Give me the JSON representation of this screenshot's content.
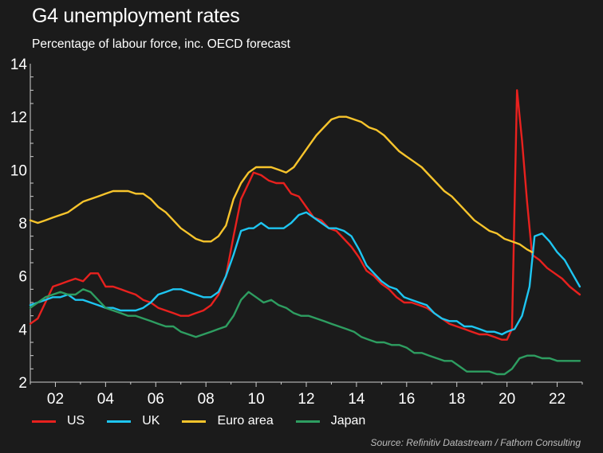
{
  "title": "G4 unemployment rates",
  "subtitle": "Percentage of labour force, inc. OECD forecast",
  "source": "Source: Refinitiv Datastream / Fathom Consulting",
  "chart_data": {
    "type": "line",
    "title": "G4 unemployment rates",
    "subtitle": "Percentage of labour force, inc. OECD forecast",
    "xlabel": "",
    "ylabel": "",
    "xlim": [
      2001,
      2023
    ],
    "ylim": [
      2,
      14
    ],
    "yticks": [
      2,
      4,
      6,
      8,
      10,
      12,
      14
    ],
    "xticks": [
      2002,
      2004,
      2006,
      2008,
      2010,
      2012,
      2014,
      2016,
      2018,
      2020,
      2022
    ],
    "xtick_labels": [
      "02",
      "04",
      "06",
      "08",
      "10",
      "12",
      "14",
      "16",
      "18",
      "20",
      "22"
    ],
    "grid": false,
    "legend_position": "bottom",
    "series": [
      {
        "name": "US",
        "color": "#e8211e",
        "points": [
          [
            2001.0,
            4.2
          ],
          [
            2001.3,
            4.4
          ],
          [
            2001.6,
            5.0
          ],
          [
            2001.9,
            5.6
          ],
          [
            2002.2,
            5.7
          ],
          [
            2002.5,
            5.8
          ],
          [
            2002.8,
            5.9
          ],
          [
            2003.1,
            5.8
          ],
          [
            2003.4,
            6.1
          ],
          [
            2003.7,
            6.1
          ],
          [
            2004.0,
            5.6
          ],
          [
            2004.3,
            5.6
          ],
          [
            2004.6,
            5.5
          ],
          [
            2004.9,
            5.4
          ],
          [
            2005.2,
            5.3
          ],
          [
            2005.5,
            5.1
          ],
          [
            2005.8,
            5.0
          ],
          [
            2006.1,
            4.8
          ],
          [
            2006.4,
            4.7
          ],
          [
            2006.7,
            4.6
          ],
          [
            2007.0,
            4.5
          ],
          [
            2007.3,
            4.5
          ],
          [
            2007.6,
            4.6
          ],
          [
            2007.9,
            4.7
          ],
          [
            2008.2,
            4.9
          ],
          [
            2008.5,
            5.3
          ],
          [
            2008.8,
            6.0
          ],
          [
            2009.1,
            7.5
          ],
          [
            2009.4,
            8.9
          ],
          [
            2009.7,
            9.5
          ],
          [
            2009.9,
            9.9
          ],
          [
            2010.2,
            9.8
          ],
          [
            2010.5,
            9.6
          ],
          [
            2010.8,
            9.5
          ],
          [
            2011.1,
            9.5
          ],
          [
            2011.4,
            9.1
          ],
          [
            2011.7,
            9.0
          ],
          [
            2012.0,
            8.6
          ],
          [
            2012.3,
            8.2
          ],
          [
            2012.6,
            8.1
          ],
          [
            2012.9,
            7.8
          ],
          [
            2013.2,
            7.7
          ],
          [
            2013.5,
            7.4
          ],
          [
            2013.8,
            7.1
          ],
          [
            2014.1,
            6.7
          ],
          [
            2014.4,
            6.2
          ],
          [
            2014.7,
            6.0
          ],
          [
            2015.0,
            5.7
          ],
          [
            2015.3,
            5.5
          ],
          [
            2015.6,
            5.2
          ],
          [
            2015.9,
            5.0
          ],
          [
            2016.2,
            5.0
          ],
          [
            2016.5,
            4.9
          ],
          [
            2016.8,
            4.8
          ],
          [
            2017.1,
            4.6
          ],
          [
            2017.4,
            4.4
          ],
          [
            2017.7,
            4.2
          ],
          [
            2018.0,
            4.1
          ],
          [
            2018.3,
            4.0
          ],
          [
            2018.6,
            3.9
          ],
          [
            2018.9,
            3.8
          ],
          [
            2019.2,
            3.8
          ],
          [
            2019.5,
            3.7
          ],
          [
            2019.8,
            3.6
          ],
          [
            2020.0,
            3.6
          ],
          [
            2020.2,
            4.0
          ],
          [
            2020.4,
            13.0
          ],
          [
            2020.6,
            11.1
          ],
          [
            2020.8,
            8.8
          ],
          [
            2021.0,
            6.8
          ],
          [
            2021.3,
            6.6
          ],
          [
            2021.6,
            6.3
          ],
          [
            2021.9,
            6.1
          ],
          [
            2022.2,
            5.9
          ],
          [
            2022.5,
            5.6
          ],
          [
            2022.9,
            5.3
          ]
        ]
      },
      {
        "name": "UK",
        "color": "#1ec6f2",
        "points": [
          [
            2001.0,
            4.9
          ],
          [
            2001.3,
            5.0
          ],
          [
            2001.6,
            5.1
          ],
          [
            2001.9,
            5.2
          ],
          [
            2002.2,
            5.2
          ],
          [
            2002.5,
            5.3
          ],
          [
            2002.8,
            5.1
          ],
          [
            2003.1,
            5.1
          ],
          [
            2003.4,
            5.0
          ],
          [
            2003.7,
            4.9
          ],
          [
            2004.0,
            4.8
          ],
          [
            2004.3,
            4.8
          ],
          [
            2004.6,
            4.7
          ],
          [
            2004.9,
            4.7
          ],
          [
            2005.2,
            4.7
          ],
          [
            2005.5,
            4.8
          ],
          [
            2005.8,
            5.0
          ],
          [
            2006.1,
            5.3
          ],
          [
            2006.4,
            5.4
          ],
          [
            2006.7,
            5.5
          ],
          [
            2007.0,
            5.5
          ],
          [
            2007.3,
            5.4
          ],
          [
            2007.6,
            5.3
          ],
          [
            2007.9,
            5.2
          ],
          [
            2008.2,
            5.2
          ],
          [
            2008.5,
            5.4
          ],
          [
            2008.8,
            6.0
          ],
          [
            2009.1,
            6.8
          ],
          [
            2009.4,
            7.7
          ],
          [
            2009.7,
            7.8
          ],
          [
            2009.9,
            7.8
          ],
          [
            2010.2,
            8.0
          ],
          [
            2010.5,
            7.8
          ],
          [
            2010.8,
            7.8
          ],
          [
            2011.1,
            7.8
          ],
          [
            2011.4,
            8.0
          ],
          [
            2011.7,
            8.3
          ],
          [
            2012.0,
            8.4
          ],
          [
            2012.3,
            8.2
          ],
          [
            2012.6,
            8.0
          ],
          [
            2012.9,
            7.8
          ],
          [
            2013.2,
            7.8
          ],
          [
            2013.5,
            7.7
          ],
          [
            2013.8,
            7.5
          ],
          [
            2014.1,
            7.0
          ],
          [
            2014.4,
            6.4
          ],
          [
            2014.7,
            6.1
          ],
          [
            2015.0,
            5.8
          ],
          [
            2015.3,
            5.6
          ],
          [
            2015.6,
            5.5
          ],
          [
            2015.9,
            5.2
          ],
          [
            2016.2,
            5.1
          ],
          [
            2016.5,
            5.0
          ],
          [
            2016.8,
            4.9
          ],
          [
            2017.1,
            4.6
          ],
          [
            2017.4,
            4.4
          ],
          [
            2017.7,
            4.3
          ],
          [
            2018.0,
            4.3
          ],
          [
            2018.3,
            4.1
          ],
          [
            2018.6,
            4.1
          ],
          [
            2018.9,
            4.0
          ],
          [
            2019.2,
            3.9
          ],
          [
            2019.5,
            3.9
          ],
          [
            2019.8,
            3.8
          ],
          [
            2020.0,
            3.9
          ],
          [
            2020.3,
            4.0
          ],
          [
            2020.6,
            4.5
          ],
          [
            2020.9,
            5.6
          ],
          [
            2021.1,
            7.5
          ],
          [
            2021.4,
            7.6
          ],
          [
            2021.7,
            7.3
          ],
          [
            2022.0,
            6.9
          ],
          [
            2022.3,
            6.6
          ],
          [
            2022.6,
            6.1
          ],
          [
            2022.9,
            5.6
          ]
        ]
      },
      {
        "name": "Euro area",
        "color": "#f7c42c",
        "points": [
          [
            2001.0,
            8.1
          ],
          [
            2001.3,
            8.0
          ],
          [
            2001.6,
            8.1
          ],
          [
            2001.9,
            8.2
          ],
          [
            2002.2,
            8.3
          ],
          [
            2002.5,
            8.4
          ],
          [
            2002.8,
            8.6
          ],
          [
            2003.1,
            8.8
          ],
          [
            2003.4,
            8.9
          ],
          [
            2003.7,
            9.0
          ],
          [
            2004.0,
            9.1
          ],
          [
            2004.3,
            9.2
          ],
          [
            2004.6,
            9.2
          ],
          [
            2004.9,
            9.2
          ],
          [
            2005.2,
            9.1
          ],
          [
            2005.5,
            9.1
          ],
          [
            2005.8,
            8.9
          ],
          [
            2006.1,
            8.6
          ],
          [
            2006.4,
            8.4
          ],
          [
            2006.7,
            8.1
          ],
          [
            2007.0,
            7.8
          ],
          [
            2007.3,
            7.6
          ],
          [
            2007.6,
            7.4
          ],
          [
            2007.9,
            7.3
          ],
          [
            2008.2,
            7.3
          ],
          [
            2008.5,
            7.5
          ],
          [
            2008.8,
            7.9
          ],
          [
            2009.1,
            8.9
          ],
          [
            2009.4,
            9.5
          ],
          [
            2009.7,
            9.9
          ],
          [
            2010.0,
            10.1
          ],
          [
            2010.3,
            10.1
          ],
          [
            2010.6,
            10.1
          ],
          [
            2010.9,
            10.0
          ],
          [
            2011.2,
            9.9
          ],
          [
            2011.5,
            10.1
          ],
          [
            2011.8,
            10.5
          ],
          [
            2012.1,
            10.9
          ],
          [
            2012.4,
            11.3
          ],
          [
            2012.7,
            11.6
          ],
          [
            2013.0,
            11.9
          ],
          [
            2013.3,
            12.0
          ],
          [
            2013.6,
            12.0
          ],
          [
            2013.9,
            11.9
          ],
          [
            2014.2,
            11.8
          ],
          [
            2014.5,
            11.6
          ],
          [
            2014.8,
            11.5
          ],
          [
            2015.1,
            11.3
          ],
          [
            2015.4,
            11.0
          ],
          [
            2015.7,
            10.7
          ],
          [
            2016.0,
            10.5
          ],
          [
            2016.3,
            10.3
          ],
          [
            2016.6,
            10.1
          ],
          [
            2016.9,
            9.8
          ],
          [
            2017.2,
            9.5
          ],
          [
            2017.5,
            9.2
          ],
          [
            2017.8,
            9.0
          ],
          [
            2018.1,
            8.7
          ],
          [
            2018.4,
            8.4
          ],
          [
            2018.7,
            8.1
          ],
          [
            2019.0,
            7.9
          ],
          [
            2019.3,
            7.7
          ],
          [
            2019.6,
            7.6
          ],
          [
            2019.9,
            7.4
          ],
          [
            2020.2,
            7.3
          ],
          [
            2020.5,
            7.2
          ],
          [
            2020.8,
            7.0
          ],
          [
            2021.0,
            6.9
          ]
        ]
      },
      {
        "name": "Japan",
        "color": "#2e9e61",
        "points": [
          [
            2001.0,
            4.8
          ],
          [
            2001.3,
            5.0
          ],
          [
            2001.6,
            5.2
          ],
          [
            2001.9,
            5.3
          ],
          [
            2002.2,
            5.4
          ],
          [
            2002.5,
            5.3
          ],
          [
            2002.8,
            5.3
          ],
          [
            2003.1,
            5.5
          ],
          [
            2003.4,
            5.4
          ],
          [
            2003.7,
            5.1
          ],
          [
            2004.0,
            4.8
          ],
          [
            2004.3,
            4.7
          ],
          [
            2004.6,
            4.6
          ],
          [
            2004.9,
            4.5
          ],
          [
            2005.2,
            4.5
          ],
          [
            2005.5,
            4.4
          ],
          [
            2005.8,
            4.3
          ],
          [
            2006.1,
            4.2
          ],
          [
            2006.4,
            4.1
          ],
          [
            2006.7,
            4.1
          ],
          [
            2007.0,
            3.9
          ],
          [
            2007.3,
            3.8
          ],
          [
            2007.6,
            3.7
          ],
          [
            2007.9,
            3.8
          ],
          [
            2008.2,
            3.9
          ],
          [
            2008.5,
            4.0
          ],
          [
            2008.8,
            4.1
          ],
          [
            2009.1,
            4.5
          ],
          [
            2009.4,
            5.1
          ],
          [
            2009.7,
            5.4
          ],
          [
            2010.0,
            5.2
          ],
          [
            2010.3,
            5.0
          ],
          [
            2010.6,
            5.1
          ],
          [
            2010.9,
            4.9
          ],
          [
            2011.2,
            4.8
          ],
          [
            2011.5,
            4.6
          ],
          [
            2011.8,
            4.5
          ],
          [
            2012.1,
            4.5
          ],
          [
            2012.4,
            4.4
          ],
          [
            2012.7,
            4.3
          ],
          [
            2013.0,
            4.2
          ],
          [
            2013.3,
            4.1
          ],
          [
            2013.6,
            4.0
          ],
          [
            2013.9,
            3.9
          ],
          [
            2014.2,
            3.7
          ],
          [
            2014.5,
            3.6
          ],
          [
            2014.8,
            3.5
          ],
          [
            2015.1,
            3.5
          ],
          [
            2015.4,
            3.4
          ],
          [
            2015.7,
            3.4
          ],
          [
            2016.0,
            3.3
          ],
          [
            2016.3,
            3.1
          ],
          [
            2016.6,
            3.1
          ],
          [
            2016.9,
            3.0
          ],
          [
            2017.2,
            2.9
          ],
          [
            2017.5,
            2.8
          ],
          [
            2017.8,
            2.8
          ],
          [
            2018.1,
            2.6
          ],
          [
            2018.4,
            2.4
          ],
          [
            2018.7,
            2.4
          ],
          [
            2019.0,
            2.4
          ],
          [
            2019.3,
            2.4
          ],
          [
            2019.6,
            2.3
          ],
          [
            2019.9,
            2.3
          ],
          [
            2020.2,
            2.5
          ],
          [
            2020.5,
            2.9
          ],
          [
            2020.8,
            3.0
          ],
          [
            2021.1,
            3.0
          ],
          [
            2021.4,
            2.9
          ],
          [
            2021.7,
            2.9
          ],
          [
            2022.0,
            2.8
          ],
          [
            2022.3,
            2.8
          ],
          [
            2022.6,
            2.8
          ],
          [
            2022.9,
            2.8
          ]
        ]
      }
    ]
  }
}
